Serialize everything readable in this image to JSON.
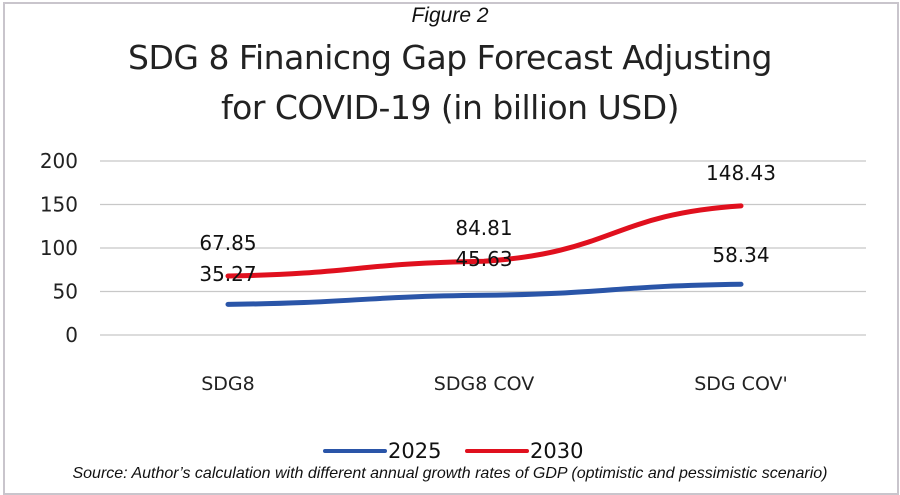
{
  "figure_label": "Figure 2",
  "source_note": "Source: Author’s calculation with different annual growth rates of GDP (optimistic and pessimistic scenario)",
  "chart_data": {
    "type": "line",
    "title_lines": [
      "SDG 8 Finanicng Gap Forecast Adjusting",
      "for COVID-19 (in billion USD)"
    ],
    "xlabel": "",
    "ylabel": "",
    "categories": [
      "SDG8",
      "SDG8 COV",
      "SDG COV'"
    ],
    "ylim": [
      0,
      200
    ],
    "yticks": [
      0,
      50,
      100,
      150,
      200
    ],
    "grid": true,
    "legend_position": "bottom",
    "series": [
      {
        "name": "2025",
        "color": "#2a55a8",
        "values": [
          35.27,
          45.63,
          58.34
        ],
        "labels": [
          "35.27",
          "45.63",
          "58.34"
        ]
      },
      {
        "name": "2030",
        "color": "#e0101e",
        "values": [
          67.85,
          84.81,
          148.43
        ],
        "labels": [
          "67.85",
          "84.81",
          "148.43"
        ]
      }
    ]
  }
}
